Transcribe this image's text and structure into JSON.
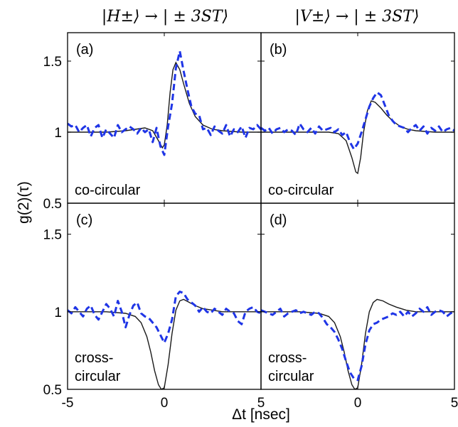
{
  "column_titles": [
    "|H±⟩ → | ± 3ST⟩",
    "|V±⟩ → | ± 3ST⟩"
  ],
  "xlabel": "Δt [nsec]",
  "ylabel": "g(2)(τ)",
  "colors": {
    "theory": "#1a1a1a",
    "experiment": "#1f35e6"
  },
  "chart_data": [
    {
      "type": "line",
      "panel": "(a)",
      "annotation": [
        "co-circular"
      ],
      "xlim": [
        -5,
        5
      ],
      "ylim": [
        0.5,
        1.7
      ],
      "xticks": [
        "-5",
        "0",
        "5"
      ],
      "yticks": [
        "0.5",
        "1",
        "1.5"
      ],
      "series": [
        {
          "style": "solid",
          "x": [
            -5,
            -4,
            -3,
            -2,
            -1.5,
            -1,
            -0.6,
            -0.3,
            -0.1,
            0,
            0.15,
            0.3,
            0.45,
            0.6,
            0.8,
            1.0,
            1.3,
            1.6,
            2,
            2.5,
            3,
            4,
            5
          ],
          "y": [
            1.0,
            1.0,
            1.0,
            1.01,
            1.02,
            1.03,
            1.01,
            0.94,
            0.89,
            0.91,
            1.05,
            1.28,
            1.44,
            1.49,
            1.44,
            1.34,
            1.2,
            1.11,
            1.05,
            1.02,
            1.01,
            1.0,
            1.0
          ]
        },
        {
          "style": "dashed",
          "x": [
            -5,
            -4.8,
            -4.6,
            -4.4,
            -4.2,
            -4.0,
            -3.8,
            -3.6,
            -3.4,
            -3.2,
            -3.0,
            -2.8,
            -2.6,
            -2.4,
            -2.2,
            -2.0,
            -1.8,
            -1.6,
            -1.4,
            -1.2,
            -1.0,
            -0.8,
            -0.6,
            -0.4,
            -0.2,
            0.0,
            0.2,
            0.4,
            0.6,
            0.8,
            1.0,
            1.2,
            1.4,
            1.6,
            1.8,
            2.0,
            2.2,
            2.4,
            2.6,
            2.8,
            3.0,
            3.2,
            3.4,
            3.6,
            3.8,
            4.0,
            4.2,
            4.4,
            4.6,
            4.8,
            5.0
          ],
          "y": [
            1.06,
            1.04,
            1.05,
            1.0,
            1.03,
            1.05,
            0.97,
            1.03,
            1.05,
            0.96,
            1.02,
            0.99,
            0.96,
            1.05,
            1.0,
            1.02,
            1.04,
            1.02,
            0.99,
            1.03,
            1.0,
            1.02,
            0.93,
            1.03,
            0.9,
            0.84,
            1.04,
            1.2,
            1.45,
            1.57,
            1.43,
            1.3,
            1.18,
            1.13,
            1.12,
            1.02,
            1.03,
            0.98,
            1.04,
            1.01,
            0.99,
            1.05,
            0.97,
            1.02,
            1.0,
            1.04,
            0.96,
            1.03,
            1.02,
            1.05,
            1.02
          ]
        }
      ]
    },
    {
      "type": "line",
      "panel": "(b)",
      "annotation": [
        "co-circular"
      ],
      "xlim": [
        -5,
        5
      ],
      "ylim": [
        0.5,
        1.7
      ],
      "xticks": [
        "-5",
        "0",
        "5"
      ],
      "yticks": [
        "0.5",
        "1",
        "1.5"
      ],
      "series": [
        {
          "style": "solid",
          "x": [
            -5,
            -4,
            -3,
            -2,
            -1.5,
            -1,
            -0.6,
            -0.3,
            -0.1,
            0,
            0.15,
            0.3,
            0.5,
            0.7,
            0.9,
            1.2,
            1.5,
            1.8,
            2.2,
            2.6,
            3,
            4,
            5
          ],
          "y": [
            1.0,
            1.0,
            1.0,
            1.0,
            1.0,
            0.99,
            0.94,
            0.82,
            0.72,
            0.71,
            0.82,
            1.0,
            1.15,
            1.22,
            1.21,
            1.17,
            1.12,
            1.08,
            1.04,
            1.02,
            1.01,
            1.0,
            1.0
          ]
        },
        {
          "style": "dashed",
          "x": [
            -5,
            -4.8,
            -4.6,
            -4.4,
            -4.2,
            -4.0,
            -3.8,
            -3.6,
            -3.4,
            -3.2,
            -3.0,
            -2.8,
            -2.6,
            -2.4,
            -2.2,
            -2.0,
            -1.8,
            -1.6,
            -1.4,
            -1.2,
            -1.0,
            -0.8,
            -0.6,
            -0.4,
            -0.2,
            0.0,
            0.2,
            0.4,
            0.6,
            0.8,
            1.0,
            1.2,
            1.4,
            1.6,
            1.8,
            2.0,
            2.2,
            2.4,
            2.6,
            2.8,
            3.0,
            3.2,
            3.4,
            3.6,
            3.8,
            4.0,
            4.2,
            4.4,
            4.6,
            4.8,
            5.0
          ],
          "y": [
            1.03,
            1.01,
            1.03,
            0.99,
            1.02,
            1.03,
            1.0,
            1.02,
            1.01,
            0.98,
            1.06,
            1.02,
            1.0,
            1.03,
            0.99,
            1.04,
            1.01,
            1.02,
            1.03,
            1.0,
            1.02,
            0.98,
            1.0,
            0.93,
            0.88,
            0.92,
            1.0,
            1.09,
            1.18,
            1.24,
            1.28,
            1.26,
            1.19,
            1.12,
            1.08,
            1.05,
            1.04,
            1.03,
            1.0,
            1.03,
            1.05,
            1.01,
            1.04,
            0.99,
            1.03,
            1.01,
            1.04,
            1.0,
            1.02,
            1.03,
            1.01
          ]
        }
      ]
    },
    {
      "type": "line",
      "panel": "(c)",
      "annotation": [
        "cross-",
        "circular"
      ],
      "xlim": [
        -5,
        5
      ],
      "ylim": [
        0.5,
        1.7
      ],
      "xticks": [
        "-5",
        "0",
        "5"
      ],
      "yticks": [
        "0.5",
        "1",
        "1.5"
      ],
      "series": [
        {
          "style": "solid",
          "x": [
            -5,
            -3,
            -2,
            -1.5,
            -1.2,
            -0.9,
            -0.7,
            -0.5,
            -0.3,
            -0.15,
            0,
            0.2,
            0.4,
            0.6,
            0.8,
            1.0,
            1.3,
            1.6,
            2,
            2.5,
            3,
            4,
            5
          ],
          "y": [
            1.0,
            1.0,
            0.99,
            0.97,
            0.93,
            0.84,
            0.74,
            0.62,
            0.53,
            0.5,
            0.51,
            0.66,
            0.86,
            1.01,
            1.07,
            1.08,
            1.06,
            1.04,
            1.02,
            1.01,
            1.0,
            1.0,
            1.0
          ]
        },
        {
          "style": "dashed",
          "x": [
            -5,
            -4.8,
            -4.6,
            -4.4,
            -4.2,
            -4.0,
            -3.8,
            -3.6,
            -3.4,
            -3.2,
            -3.0,
            -2.8,
            -2.6,
            -2.4,
            -2.2,
            -2.0,
            -1.8,
            -1.6,
            -1.4,
            -1.2,
            -1.0,
            -0.8,
            -0.6,
            -0.4,
            -0.2,
            0.0,
            0.2,
            0.4,
            0.6,
            0.8,
            1.0,
            1.2,
            1.4,
            1.6,
            1.8,
            2.0,
            2.2,
            2.4,
            2.6,
            2.8,
            3.0,
            3.2,
            3.4,
            3.6,
            3.8,
            4.0,
            4.2,
            4.4,
            4.6,
            4.8,
            5.0
          ],
          "y": [
            1.01,
            0.99,
            1.03,
            1.0,
            0.97,
            1.02,
            1.04,
            0.98,
            0.95,
            1.0,
            1.05,
            1.02,
            0.97,
            1.07,
            1.0,
            0.9,
            0.98,
            1.04,
            1.06,
            0.99,
            0.97,
            0.96,
            0.93,
            0.9,
            0.85,
            0.8,
            0.86,
            0.95,
            1.1,
            1.13,
            1.12,
            1.08,
            1.06,
            1.04,
            1.0,
            1.03,
            1.0,
            0.99,
            1.02,
            1.0,
            0.98,
            1.02,
            1.0,
            0.99,
            0.94,
            0.92,
            1.0,
            1.02,
            1.03,
            1.0,
            0.99
          ]
        }
      ]
    },
    {
      "type": "line",
      "panel": "(d)",
      "annotation": [
        "cross-",
        "circular"
      ],
      "xlim": [
        -5,
        5
      ],
      "ylim": [
        0.5,
        1.7
      ],
      "xticks": [
        "-5",
        "0",
        "5"
      ],
      "yticks": [
        "0.5",
        "1",
        "1.5"
      ],
      "series": [
        {
          "style": "solid",
          "x": [
            -5,
            -3,
            -2,
            -1.5,
            -1.2,
            -0.9,
            -0.7,
            -0.5,
            -0.3,
            -0.15,
            0,
            0.2,
            0.4,
            0.6,
            0.8,
            1.0,
            1.3,
            1.6,
            2,
            2.5,
            3,
            4,
            5
          ],
          "y": [
            1.0,
            1.0,
            0.99,
            0.97,
            0.93,
            0.84,
            0.74,
            0.62,
            0.53,
            0.5,
            0.51,
            0.66,
            0.86,
            1.0,
            1.06,
            1.08,
            1.07,
            1.05,
            1.03,
            1.01,
            1.0,
            1.0,
            1.0
          ]
        },
        {
          "style": "dashed",
          "x": [
            -5,
            -4.8,
            -4.6,
            -4.4,
            -4.2,
            -4.0,
            -3.8,
            -3.6,
            -3.4,
            -3.2,
            -3.0,
            -2.8,
            -2.6,
            -2.4,
            -2.2,
            -2.0,
            -1.8,
            -1.6,
            -1.4,
            -1.2,
            -1.0,
            -0.8,
            -0.6,
            -0.4,
            -0.2,
            0.0,
            0.2,
            0.4,
            0.6,
            0.8,
            1.0,
            1.2,
            1.4,
            1.6,
            1.8,
            2.0,
            2.2,
            2.4,
            2.6,
            2.8,
            3.0,
            3.2,
            3.4,
            3.6,
            3.8,
            4.0,
            4.2,
            4.4,
            4.6,
            4.8,
            5.0
          ],
          "y": [
            1.01,
            1.0,
            0.99,
            0.98,
            1.0,
            1.02,
            0.97,
            0.99,
            1.0,
            1.01,
            0.99,
            1.0,
            0.99,
            0.98,
            1.0,
            0.99,
            0.96,
            0.92,
            0.9,
            0.87,
            0.82,
            0.76,
            0.68,
            0.61,
            0.57,
            0.56,
            0.65,
            0.79,
            0.88,
            0.92,
            0.93,
            0.95,
            0.96,
            0.97,
            0.99,
            0.98,
            1.0,
            0.97,
            1.0,
            0.97,
            0.99,
            1.02,
            1.0,
            1.03,
            0.98,
            1.0,
            1.01,
            1.0,
            0.97,
            0.99,
            1.0
          ]
        }
      ]
    }
  ]
}
